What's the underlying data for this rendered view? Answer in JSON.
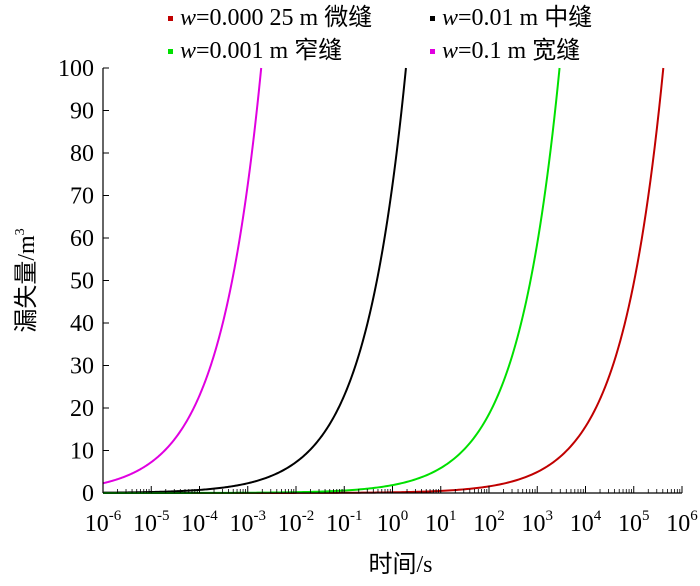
{
  "chart_data": {
    "type": "line",
    "xlabel": "时间/s",
    "ylabel": "漏失量/m",
    "ylabel_superscript": "3",
    "x_scale": "log",
    "xlim": [
      1e-06,
      1000000
    ],
    "ylim": [
      0,
      100
    ],
    "x_tick_values": [
      1e-06,
      1e-05,
      0.0001,
      0.001,
      0.01,
      0.1,
      1,
      10,
      100,
      1000,
      10000,
      100000,
      1000000
    ],
    "x_tick_labels": [
      {
        "base": "10",
        "exp": "-6"
      },
      {
        "base": "10",
        "exp": "-5"
      },
      {
        "base": "10",
        "exp": "-4"
      },
      {
        "base": "10",
        "exp": "-3"
      },
      {
        "base": "10",
        "exp": "-2"
      },
      {
        "base": "10",
        "exp": "-1"
      },
      {
        "base": "10",
        "exp": "0"
      },
      {
        "base": "10",
        "exp": "1"
      },
      {
        "base": "10",
        "exp": "2"
      },
      {
        "base": "10",
        "exp": "3"
      },
      {
        "base": "10",
        "exp": "4"
      },
      {
        "base": "10",
        "exp": "5"
      },
      {
        "base": "10",
        "exp": "6"
      }
    ],
    "y_ticks": [
      0,
      10,
      20,
      30,
      40,
      50,
      60,
      70,
      80,
      90,
      100
    ],
    "grid": false,
    "legend_position": "top",
    "series": [
      {
        "name_var": "w",
        "name_rest": "=0.000 25 m 微缝",
        "color": "#c00000",
        "t_end": 410000
      },
      {
        "name_var": "w",
        "name_rest": "=0.01 m 中缝",
        "color": "#000000",
        "t_end": 1.9
      },
      {
        "name_var": "w",
        "name_rest": "=0.001 m 窄缝",
        "color": "#00e000",
        "t_end": 2900
      },
      {
        "name_var": "w",
        "name_rest": "=0.1 m 宽缝",
        "color": "#e000e0",
        "t_end": 0.0019
      }
    ],
    "curve_model": "y = 100 * (t / t_end)^0.5, t from xlim[0] to t_end"
  }
}
